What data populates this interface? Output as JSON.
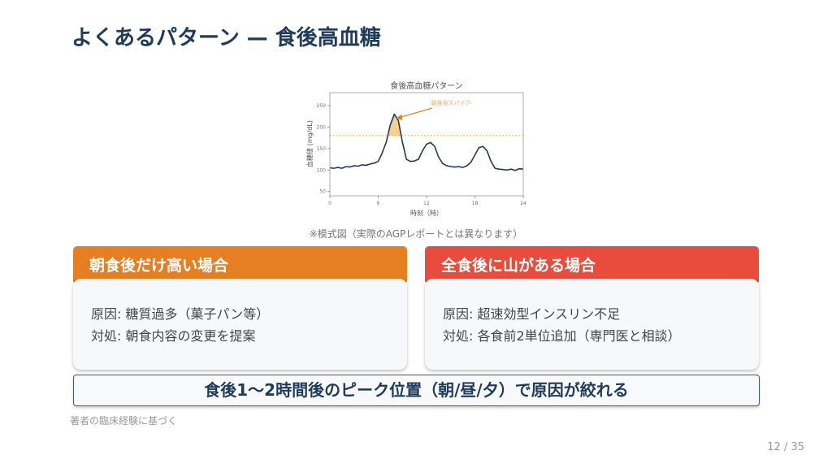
{
  "title": "よくあるパターン — 食後高血糖",
  "caption": "※模式図（実際のAGPレポートとは異なります）",
  "chart_data": {
    "type": "line",
    "title": "食後高血糖パターン",
    "xlabel": "時刻（時）",
    "ylabel": "血糖値 (mg/dL)",
    "xlim": [
      0,
      24
    ],
    "ylim": [
      40,
      280
    ],
    "xticks": [
      0,
      6,
      12,
      18,
      24
    ],
    "yticks": [
      50,
      100,
      150,
      200,
      250
    ],
    "grid": false,
    "threshold": 180,
    "annotation": "朝食後スパイク",
    "annotation_point": [
      8.2,
      222
    ],
    "colors": {
      "line": "#1f3b5c",
      "threshold": "#f5b041",
      "fill": "#f8cf8e",
      "annotation": "#e67e22"
    },
    "x": [
      0,
      0.5,
      1,
      1.5,
      2,
      2.5,
      3,
      3.5,
      4,
      4.5,
      5,
      5.5,
      6,
      6.5,
      7,
      7.5,
      8,
      8.5,
      9,
      9.5,
      10,
      10.5,
      11,
      11.5,
      12,
      12.5,
      13,
      13.5,
      14,
      14.5,
      15,
      15.5,
      16,
      16.5,
      17,
      17.5,
      18,
      18.5,
      19,
      19.5,
      20,
      20.5,
      21,
      21.5,
      22,
      22.5,
      23,
      23.5,
      24
    ],
    "y": [
      105,
      104,
      106,
      104,
      108,
      107,
      110,
      109,
      112,
      111,
      114,
      116,
      120,
      140,
      165,
      205,
      230,
      215,
      165,
      125,
      120,
      121,
      125,
      145,
      160,
      164,
      155,
      130,
      115,
      110,
      108,
      107,
      108,
      106,
      110,
      118,
      135,
      152,
      155,
      145,
      120,
      104,
      102,
      101,
      100,
      102,
      99,
      103,
      102
    ]
  },
  "cards": [
    {
      "title": "朝食後だけ高い場合",
      "cause": "原因: 糖質過多（菓子パン等）",
      "action": "対処: 朝食内容の変更を提案",
      "color": "#e67e22"
    },
    {
      "title": "全食後に山がある場合",
      "cause": "原因: 超速効型インスリン不足",
      "action": "対処: 各食前2単位追加（専門医と相談）",
      "color": "#e74c3c"
    }
  ],
  "summary": "食後1〜2時間後のピーク位置（朝/昼/夕）で原因が絞れる",
  "footnote": "著者の臨床経験に基づく",
  "page": "12 / 35"
}
